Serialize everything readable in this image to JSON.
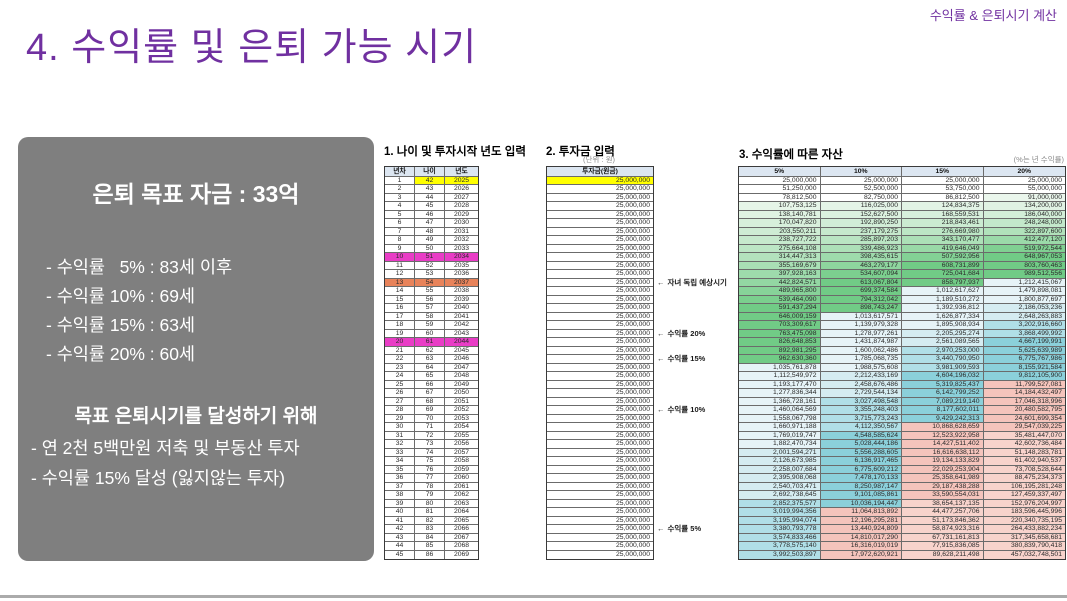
{
  "slide": {
    "title": "4. 수익률 및 은퇴 가능 시기",
    "corner_note": "수익률 & 은퇴시기 계산"
  },
  "summary_box": {
    "title": "은퇴 목표 자금 : 33억",
    "lines": [
      "- 수익률   5% : 83세 이후",
      "- 수익률 10% : 69세",
      "- 수익률 15% : 63세",
      "- 수익률 20% : 60세"
    ],
    "subtitle": "목표 은퇴시기를 달성하기 위해",
    "sub_lines": [
      "- 연 2천 5백만원 저축 및 부동산 투자",
      "- 수익률 15% 달성 (잃지않는 투자)"
    ]
  },
  "section1": {
    "heading": "1. 나이 및 투자시작 년도 입력",
    "columns": [
      "년차",
      "나이",
      "년도"
    ],
    "rows": [
      [
        1,
        42,
        2025
      ],
      [
        2,
        43,
        2026
      ],
      [
        3,
        44,
        2027
      ],
      [
        4,
        45,
        2028
      ],
      [
        5,
        46,
        2029
      ],
      [
        6,
        47,
        2030
      ],
      [
        7,
        48,
        2031
      ],
      [
        8,
        49,
        2032
      ],
      [
        9,
        50,
        2033
      ],
      [
        10,
        51,
        2034
      ],
      [
        11,
        52,
        2035
      ],
      [
        12,
        53,
        2036
      ],
      [
        13,
        54,
        2037
      ],
      [
        14,
        55,
        2038
      ],
      [
        15,
        56,
        2039
      ],
      [
        16,
        57,
        2040
      ],
      [
        17,
        58,
        2041
      ],
      [
        18,
        59,
        2042
      ],
      [
        19,
        60,
        2043
      ],
      [
        20,
        61,
        2044
      ],
      [
        21,
        62,
        2045
      ],
      [
        22,
        63,
        2046
      ],
      [
        23,
        64,
        2047
      ],
      [
        24,
        65,
        2048
      ],
      [
        25,
        66,
        2049
      ],
      [
        26,
        67,
        2050
      ],
      [
        27,
        68,
        2051
      ],
      [
        28,
        69,
        2052
      ],
      [
        29,
        70,
        2053
      ],
      [
        30,
        71,
        2054
      ],
      [
        31,
        72,
        2055
      ],
      [
        32,
        73,
        2056
      ],
      [
        33,
        74,
        2057
      ],
      [
        34,
        75,
        2058
      ],
      [
        35,
        76,
        2059
      ],
      [
        36,
        77,
        2060
      ],
      [
        37,
        78,
        2061
      ],
      [
        38,
        79,
        2062
      ],
      [
        39,
        80,
        2063
      ],
      [
        40,
        81,
        2064
      ],
      [
        41,
        82,
        2065
      ],
      [
        42,
        83,
        2066
      ],
      [
        43,
        84,
        2067
      ],
      [
        44,
        85,
        2068
      ],
      [
        45,
        86,
        2069
      ]
    ],
    "highlights": [
      {
        "row": 1,
        "scope": "age-year",
        "color": "highlight_yellow"
      },
      {
        "row": 10,
        "scope": "row",
        "color": "highlight_magenta"
      },
      {
        "row": 13,
        "scope": "row",
        "color": "highlight_orange"
      },
      {
        "row": 20,
        "scope": "row",
        "color": "highlight_magenta"
      }
    ]
  },
  "section2": {
    "heading": "2. 투자금 입력",
    "unit_note": "(단위 : 원)",
    "column_header": "투자금(원금)",
    "amount": 25000000,
    "row_count": 45,
    "first_row_highlight": "highlight_yellow"
  },
  "annotations": {
    "arrow": "←",
    "items": [
      {
        "row": 13,
        "label": "자녀 독립 예상시기"
      },
      {
        "row": 19,
        "label": "수익률 20%"
      },
      {
        "row": 22,
        "label": "수익률 15%"
      },
      {
        "row": 28,
        "label": "수익률 10%"
      },
      {
        "row": 42,
        "label": "수익률 5%"
      }
    ]
  },
  "section3": {
    "heading": "3. 수익률에 따른 자산",
    "note": "(%는 년 수익률)",
    "columns": [
      "5%",
      "10%",
      "15%",
      "20%"
    ],
    "rows": [
      [
        25000000,
        25000000,
        25000000,
        25000000
      ],
      [
        51250000,
        52500000,
        53750000,
        55000000
      ],
      [
        78812500,
        82750000,
        86812500,
        91000000
      ],
      [
        107753125,
        116025000,
        124834375,
        134200000
      ],
      [
        138140781,
        152627500,
        168559531,
        186040000
      ],
      [
        170047820,
        192890250,
        218843461,
        248248000
      ],
      [
        203550211,
        237179275,
        276669980,
        322897600
      ],
      [
        238727722,
        285897203,
        343170477,
        412477120
      ],
      [
        275664108,
        339486923,
        419646049,
        519972544
      ],
      [
        314447313,
        398435615,
        507592956,
        648967053
      ],
      [
        355169679,
        463279177,
        608731899,
        803760463
      ],
      [
        397928163,
        534607094,
        725041684,
        989512556
      ],
      [
        442824571,
        613067804,
        858797937,
        1212415067
      ],
      [
        489965800,
        699374584,
        1012617627,
        1479898081
      ],
      [
        539464090,
        794312042,
        1189510272,
        1800877697
      ],
      [
        591437294,
        898743247,
        1392936812,
        2186053236
      ],
      [
        646009159,
        1013617571,
        1626877334,
        2648263883
      ],
      [
        703309617,
        1139979328,
        1895908934,
        3202916660
      ],
      [
        763475098,
        1278977261,
        2205295274,
        3868499992
      ],
      [
        826648853,
        1431874987,
        2561089565,
        4667199991
      ],
      [
        892981295,
        1600062486,
        2970253000,
        5625639989
      ],
      [
        962630360,
        1785068735,
        3440790950,
        6775767986
      ],
      [
        1035761878,
        1988575608,
        3981909593,
        8155921584
      ],
      [
        1112549972,
        2212433169,
        4604196032,
        9812105900
      ],
      [
        1193177470,
        2458676486,
        5319825437,
        11799527081
      ],
      [
        1277836344,
        2729544134,
        6142799252,
        14184432497
      ],
      [
        1366728161,
        3027498548,
        7089219140,
        17046318996
      ],
      [
        1460064569,
        3355248403,
        8177602011,
        20480582795
      ],
      [
        1558067798,
        3715773243,
        9429242313,
        24601699354
      ],
      [
        1660971188,
        4112350567,
        10868628659,
        29547039225
      ],
      [
        1769019747,
        4548585624,
        12523922958,
        35481447070
      ],
      [
        1882470734,
        5028444186,
        14427511402,
        42602736484
      ],
      [
        2001594271,
        5556288605,
        16616638112,
        51148283781
      ],
      [
        2126673985,
        6136917465,
        19134133829,
        61402940537
      ],
      [
        2258007684,
        6775609212,
        22029253904,
        73708528644
      ],
      [
        2395908068,
        7478170133,
        25358641989,
        88475234373
      ],
      [
        2540703471,
        8250987147,
        29187438288,
        106195281248
      ],
      [
        2692738645,
        9101085861,
        33590554031,
        127459337497
      ],
      [
        2852375577,
        10036194447,
        38654137135,
        152976204997
      ],
      [
        3019994356,
        11064813892,
        44477257706,
        183596445996
      ],
      [
        3195994074,
        12196295281,
        51173846362,
        220340735195
      ],
      [
        3380793778,
        13440924809,
        58874923316,
        264433882234
      ],
      [
        3574833466,
        14810017290,
        67731161813,
        317345658681
      ],
      [
        3778575140,
        16316019019,
        77915836085,
        380839790418
      ],
      [
        3992503897,
        17972620921,
        89628211498,
        457032748501
      ]
    ]
  },
  "colors": {
    "accent_purple": "#7030a0",
    "box_gray": "#7f7f7f",
    "table_header_blue": "#dce6f1",
    "highlight_yellow": "#ffff00",
    "highlight_magenta": "#e93dc6",
    "highlight_orange": "#e8835a"
  }
}
